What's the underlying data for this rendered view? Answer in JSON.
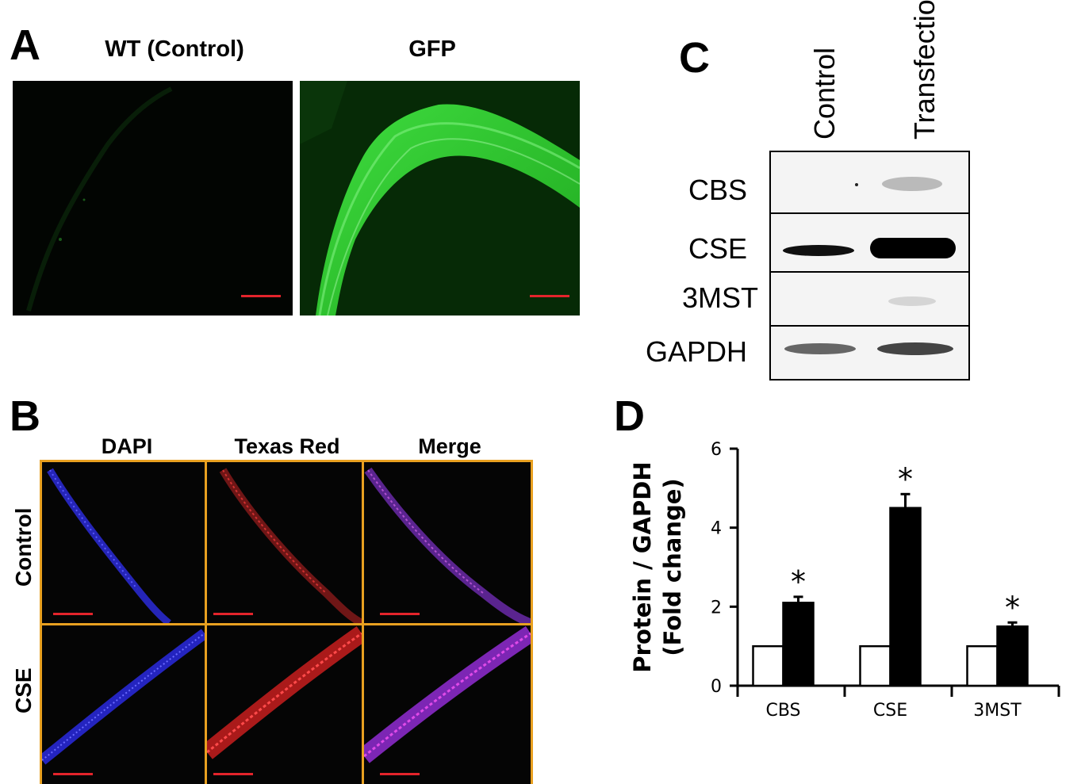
{
  "panels": {
    "A": {
      "letter": "A",
      "titles": [
        "WT (Control)",
        "GFP"
      ]
    },
    "B": {
      "letter": "B",
      "column_titles": [
        "DAPI",
        "Texas Red",
        "Merge"
      ],
      "row_labels": [
        "Control",
        "CSE"
      ]
    },
    "C": {
      "letter": "C",
      "lanes": [
        "Control",
        "Transfection"
      ],
      "bands": [
        "CBS",
        "CSE",
        "3MST",
        "GAPDH"
      ]
    },
    "D": {
      "letter": "D"
    }
  },
  "chart_data": {
    "type": "bar",
    "categories": [
      "CBS",
      "CSE",
      "3MST"
    ],
    "series": [
      {
        "values": [
          1.0,
          1.0,
          1.0
        ],
        "errors": [
          0,
          0,
          0
        ],
        "color": "#ffffff"
      },
      {
        "values": [
          2.1,
          4.5,
          1.5
        ],
        "errors": [
          0.15,
          0.35,
          0.1
        ],
        "color": "#000000"
      }
    ],
    "significance": [
      "*",
      "*",
      "*"
    ],
    "ylabel_line1": "Protein / GAPDH",
    "ylabel_line2": "(Fold change)",
    "ylim": [
      0,
      6
    ],
    "yticks": [
      0,
      2,
      4,
      6
    ]
  }
}
